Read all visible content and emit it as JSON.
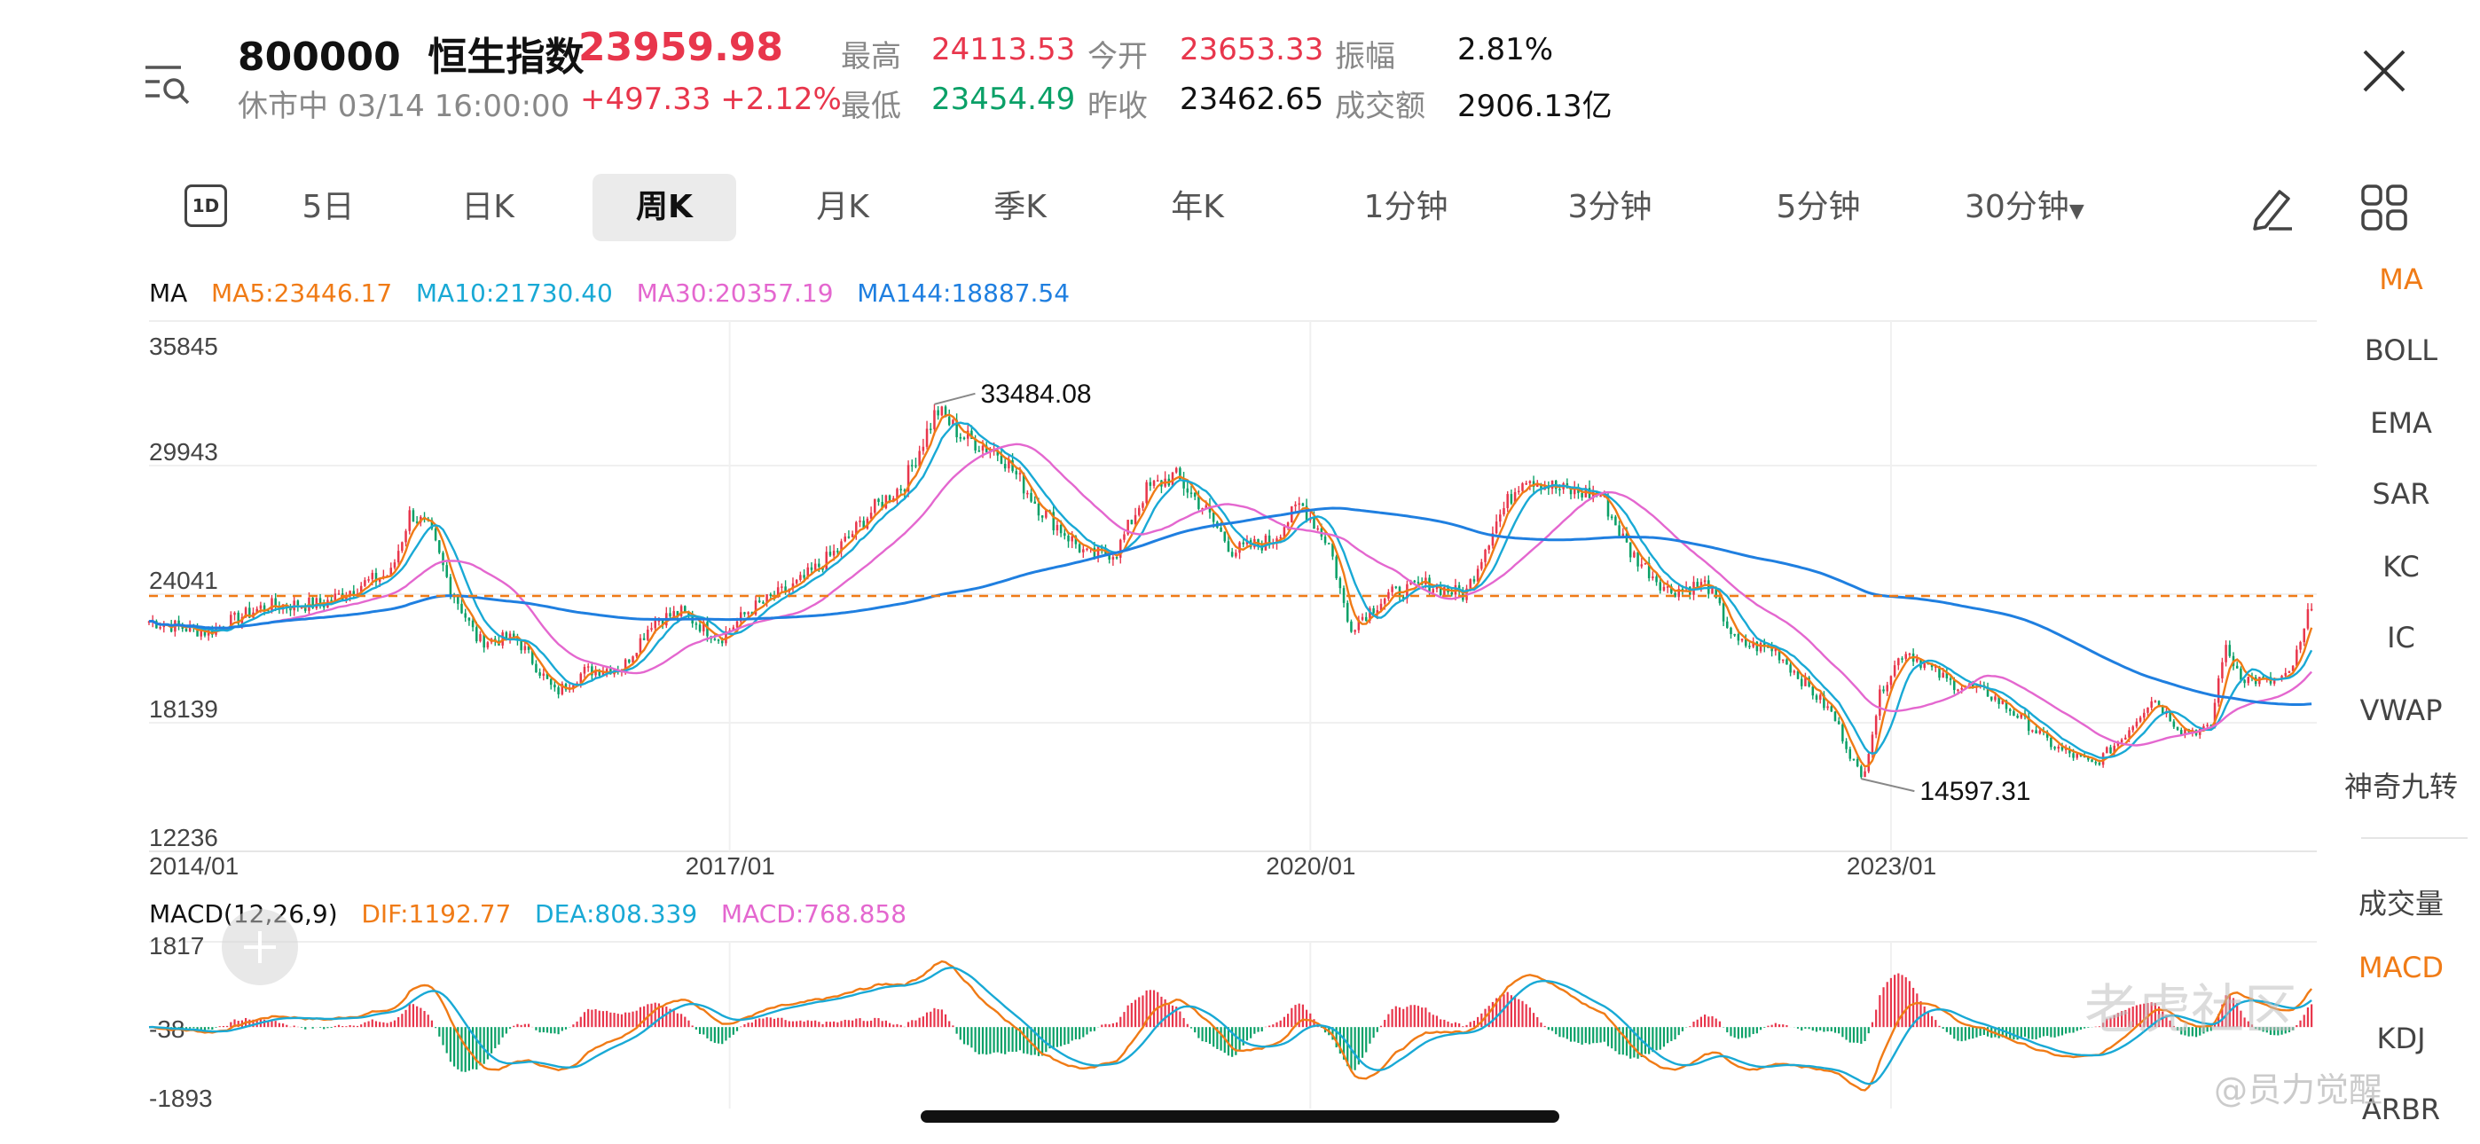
{
  "quote": {
    "code": "800000",
    "name": "恒生指数",
    "price": "23959.98",
    "status": "休市中 03/14 16:00:00",
    "change": "+497.33",
    "change_pct": "+2.12%"
  },
  "stats": {
    "high_label": "最高",
    "high": "24113.53",
    "open_label": "今开",
    "open": "23653.33",
    "amp_label": "振幅",
    "amp": "2.81%",
    "low_label": "最低",
    "low": "23454.49",
    "prev_label": "昨收",
    "prev": "23462.65",
    "turnover_label": "成交额",
    "turnover": "2906.13亿"
  },
  "tabs": [
    {
      "label": "1D"
    },
    {
      "label": "5日"
    },
    {
      "label": "日K"
    },
    {
      "label": "周K",
      "active": true
    },
    {
      "label": "月K"
    },
    {
      "label": "季K"
    },
    {
      "label": "年K"
    },
    {
      "label": "1分钟"
    },
    {
      "label": "3分钟"
    },
    {
      "label": "5分钟"
    },
    {
      "label": "30分钟"
    }
  ],
  "icons": {
    "menu": "menu-search-icon",
    "close": "close-icon",
    "draw": "pencil-icon",
    "layout": "grid-icon",
    "dropdown": "caret-down-icon",
    "add": "plus-icon"
  },
  "right_panel": {
    "main_indicators": [
      "MA",
      "BOLL",
      "EMA",
      "SAR",
      "KC",
      "IC",
      "VWAP",
      "神奇九转"
    ],
    "active_main": "MA",
    "sub_indicators": [
      "成交量",
      "MACD",
      "KDJ",
      "ARBR"
    ],
    "active_sub": "MACD"
  },
  "colors": {
    "up": "#e8364c",
    "down": "#0aa067",
    "ma5": "#f07b16",
    "ma10": "#19a9d5",
    "ma30": "#e467cf",
    "ma144": "#1f7fe0",
    "current_line": "#f07b16"
  },
  "chart_data": {
    "type": "candlestick",
    "period": "weekly",
    "ma_legend": {
      "title": "MA",
      "ma5": "MA5:23446.17",
      "ma10": "MA10:21730.40",
      "ma30": "MA30:20357.19",
      "ma144": "MA144:18887.54"
    },
    "y_ticks": [
      "35845",
      "29943",
      "24041",
      "18139",
      "12236"
    ],
    "ylim": [
      12236,
      35845
    ],
    "x_ticks": [
      "2014/01",
      "2017/01",
      "2020/01",
      "2023/01"
    ],
    "x_range_years": [
      2014.0,
      2025.2
    ],
    "annotations": {
      "high": "33484.08",
      "low": "14597.31"
    },
    "current_price": 23959.98,
    "close_series": [
      [
        2014.0,
        22800
      ],
      [
        2014.3,
        22300
      ],
      [
        2014.6,
        23500
      ],
      [
        2014.9,
        23600
      ],
      [
        2015.1,
        24500
      ],
      [
        2015.25,
        25000
      ],
      [
        2015.35,
        27800
      ],
      [
        2015.45,
        27000
      ],
      [
        2015.55,
        24500
      ],
      [
        2015.7,
        21900
      ],
      [
        2015.9,
        22000
      ],
      [
        2016.1,
        19500
      ],
      [
        2016.25,
        20500
      ],
      [
        2016.45,
        20700
      ],
      [
        2016.6,
        22800
      ],
      [
        2016.75,
        23200
      ],
      [
        2016.95,
        22000
      ],
      [
        2017.1,
        23300
      ],
      [
        2017.35,
        24500
      ],
      [
        2017.55,
        26000
      ],
      [
        2017.75,
        28000
      ],
      [
        2017.9,
        29100
      ],
      [
        2018.07,
        32500
      ],
      [
        2018.2,
        31300
      ],
      [
        2018.4,
        30500
      ],
      [
        2018.6,
        28000
      ],
      [
        2018.85,
        25800
      ],
      [
        2019.0,
        26000
      ],
      [
        2019.15,
        28800
      ],
      [
        2019.3,
        29500
      ],
      [
        2019.45,
        28000
      ],
      [
        2019.6,
        26000
      ],
      [
        2019.8,
        26500
      ],
      [
        2019.95,
        28200
      ],
      [
        2020.1,
        26300
      ],
      [
        2020.2,
        22500
      ],
      [
        2020.4,
        24000
      ],
      [
        2020.6,
        24500
      ],
      [
        2020.8,
        24000
      ],
      [
        2020.95,
        27200
      ],
      [
        2021.1,
        29500
      ],
      [
        2021.3,
        28800
      ],
      [
        2021.5,
        28600
      ],
      [
        2021.65,
        26000
      ],
      [
        2021.85,
        24200
      ],
      [
        2022.05,
        24500
      ],
      [
        2022.2,
        21800
      ],
      [
        2022.4,
        21500
      ],
      [
        2022.55,
        20000
      ],
      [
        2022.7,
        18500
      ],
      [
        2022.85,
        15500
      ],
      [
        2022.95,
        19700
      ],
      [
        2023.07,
        21500
      ],
      [
        2023.3,
        20000
      ],
      [
        2023.5,
        19500
      ],
      [
        2023.65,
        18500
      ],
      [
        2023.85,
        17000
      ],
      [
        2024.05,
        16200
      ],
      [
        2024.2,
        17500
      ],
      [
        2024.35,
        19300
      ],
      [
        2024.5,
        17800
      ],
      [
        2024.65,
        17800
      ],
      [
        2024.72,
        21600
      ],
      [
        2024.82,
        20200
      ],
      [
        2024.95,
        20000
      ],
      [
        2025.05,
        20200
      ],
      [
        2025.12,
        21800
      ],
      [
        2025.18,
        23960
      ]
    ],
    "macd_legend": {
      "title": "MACD(12,26,9)",
      "dif": "DIF:1192.77",
      "dea": "DEA:808.339",
      "macd": "MACD:768.858"
    },
    "macd_y_ticks": [
      "1817",
      "-38",
      "-1893"
    ],
    "macd_ylim": [
      -1893,
      1817
    ]
  },
  "watermark": {
    "brand": "老虎社区",
    "user": "@员力觉醒"
  }
}
